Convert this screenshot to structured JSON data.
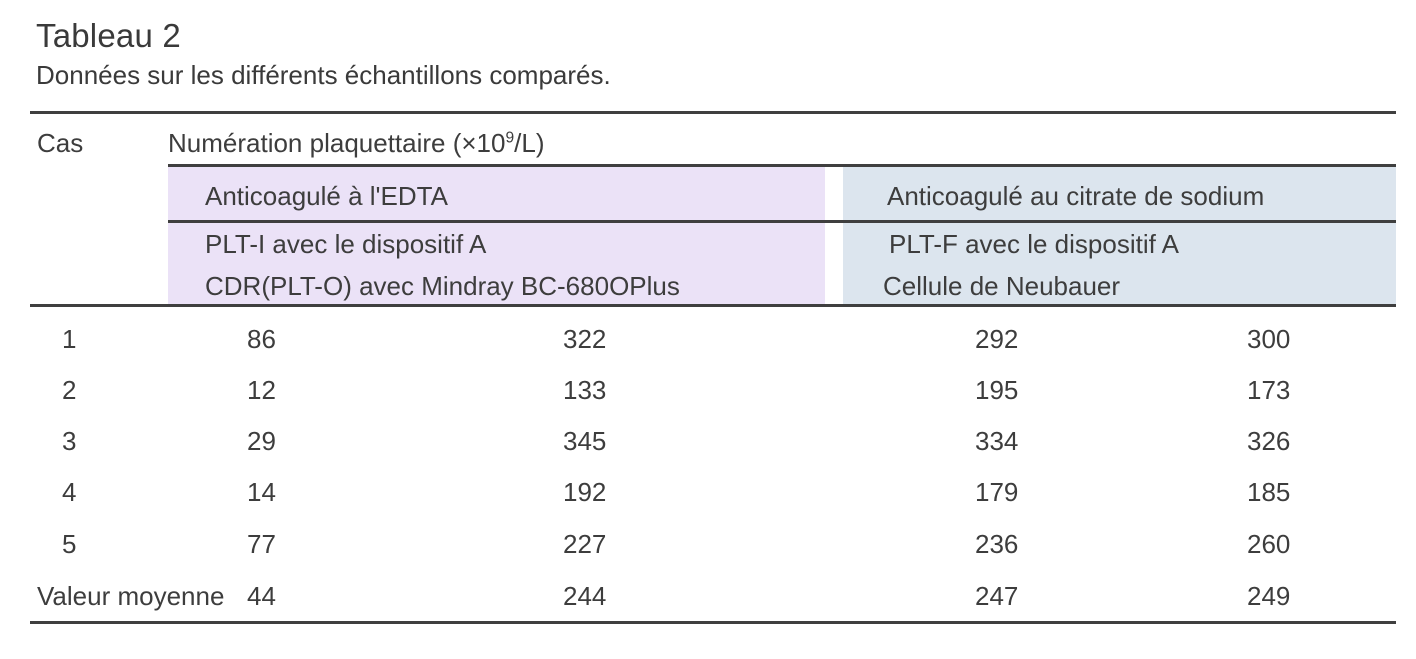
{
  "table": {
    "title": "Tableau 2",
    "caption": "Données sur les différents échantillons comparés.",
    "header": {
      "case": "Cas",
      "measure_prefix": "Numération plaquettaire (×10",
      "measure_sup": "9",
      "measure_suffix": "/L)"
    },
    "groups": {
      "edta": {
        "anticoagulant": "Anticoagulé à l'EDTA",
        "method_line1": "PLT-I avec le dispositif A",
        "method_line2": "CDR(PLT-O) avec Mindray BC-680OPlus"
      },
      "citrate": {
        "anticoagulant": "Anticoagulé au citrate de sodium",
        "method_line1": "PLT-F avec le dispositif A",
        "method_line2": "Cellule de Neubauer"
      }
    },
    "rows": [
      {
        "label": "1",
        "edta_plt_i": "86",
        "edta_cdr": "322",
        "citrate_plt_f": "292",
        "citrate_neubauer": "300"
      },
      {
        "label": "2",
        "edta_plt_i": "12",
        "edta_cdr": "133",
        "citrate_plt_f": "195",
        "citrate_neubauer": "173"
      },
      {
        "label": "3",
        "edta_plt_i": "29",
        "edta_cdr": "345",
        "citrate_plt_f": "334",
        "citrate_neubauer": "326"
      },
      {
        "label": "4",
        "edta_plt_i": "14",
        "edta_cdr": "192",
        "citrate_plt_f": "179",
        "citrate_neubauer": "185"
      },
      {
        "label": "5",
        "edta_plt_i": "77",
        "edta_cdr": "227",
        "citrate_plt_f": "236",
        "citrate_neubauer": "260"
      },
      {
        "label": "Valeur moyenne",
        "edta_plt_i": "44",
        "edta_cdr": "244",
        "citrate_plt_f": "247",
        "citrate_neubauer": "249"
      }
    ],
    "colors": {
      "edta_band": "#ebe2f7",
      "citrate_band": "#dce5ee",
      "rule": "#3f3f3f",
      "text": "#3d3d3d"
    }
  }
}
